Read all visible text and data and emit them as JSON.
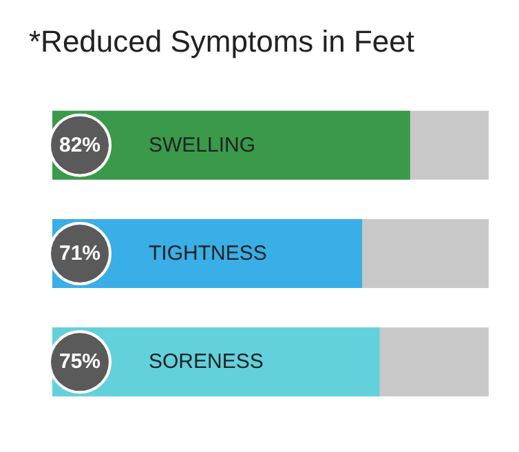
{
  "chart_data": {
    "type": "bar",
    "orientation": "horizontal",
    "title": "*Reduced Symptoms in Feet",
    "categories": [
      "SWELLING",
      "TIGHTNESS",
      "SORENESS"
    ],
    "values": [
      82,
      71,
      75
    ],
    "colors": [
      "#3a9a4a",
      "#3aaee6",
      "#62d1dc"
    ],
    "value_labels": [
      "82%",
      "71%",
      "75%"
    ],
    "xlim": [
      0,
      100
    ],
    "tick_labels": "y"
  }
}
